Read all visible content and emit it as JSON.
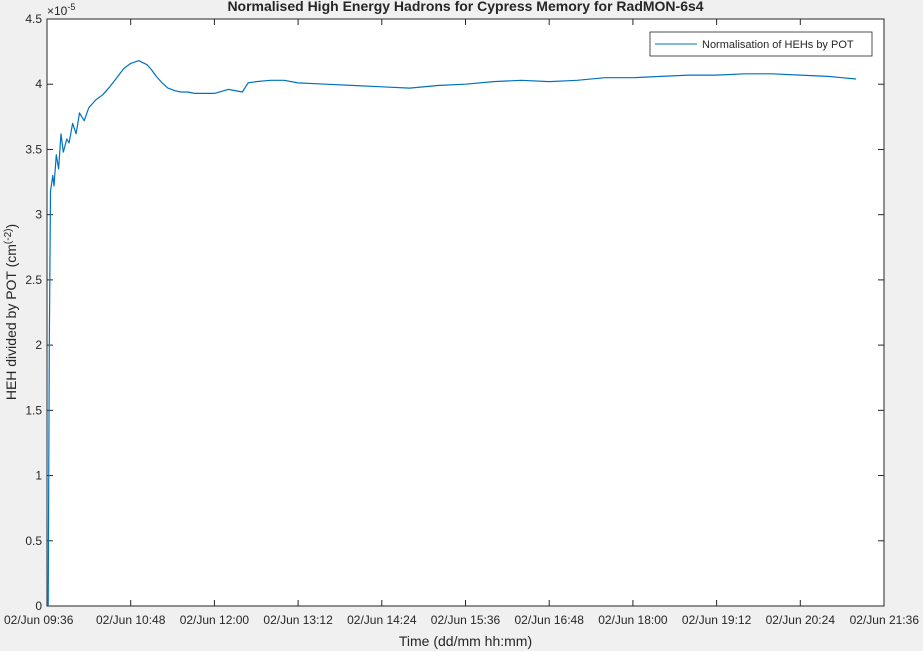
{
  "chart_data": {
    "type": "line",
    "title": "Normalised High Energy Hadrons for Cypress Memory for RadMON-6s4",
    "xlabel": "Time (dd/mm hh:mm)",
    "ylabel_main": "HEH divided by POT (cm",
    "ylabel_sup": "(-2)",
    "ylabel_tail": ")",
    "y_exponent_base": "×10",
    "y_exponent_power": "-5",
    "ylim": [
      0,
      4.5
    ],
    "xlim": [
      "09:36",
      "21:36"
    ],
    "x_ticks": [
      "02/Jun 09:36",
      "02/Jun 10:48",
      "02/Jun 12:00",
      "02/Jun 13:12",
      "02/Jun 14:24",
      "02/Jun 15:36",
      "02/Jun 16:48",
      "02/Jun 18:00",
      "02/Jun 19:12",
      "02/Jun 20:24",
      "02/Jun 21:36"
    ],
    "y_ticks": [
      "0",
      "0.5",
      "1",
      "1.5",
      "2",
      "2.5",
      "3",
      "3.5",
      "4",
      "4.5"
    ],
    "grid": false,
    "legend_position": "top-right",
    "series": [
      {
        "name": "Normalisation of HEHs by POT",
        "color": "#0072bd",
        "x": [
          "09:37",
          "09:38",
          "09:39",
          "09:41",
          "09:42",
          "09:44",
          "09:46",
          "09:48",
          "09:50",
          "09:53",
          "09:55",
          "09:58",
          "10:01",
          "10:04",
          "10:08",
          "10:12",
          "10:18",
          "10:24",
          "10:30",
          "10:36",
          "10:42",
          "10:48",
          "10:55",
          "11:02",
          "11:06",
          "11:10",
          "11:15",
          "11:20",
          "11:26",
          "11:31",
          "11:37",
          "11:43",
          "11:48",
          "11:54",
          "12:00",
          "12:12",
          "12:24",
          "12:29",
          "12:36",
          "12:48",
          "13:00",
          "13:12",
          "13:36",
          "14:00",
          "14:24",
          "14:48",
          "15:12",
          "15:36",
          "16:00",
          "16:24",
          "16:48",
          "17:12",
          "17:36",
          "18:00",
          "18:24",
          "18:48",
          "19:12",
          "19:36",
          "20:00",
          "20:24",
          "20:48",
          "21:00",
          "21:12"
        ],
        "y": [
          0,
          2.0,
          3.18,
          3.3,
          3.22,
          3.46,
          3.35,
          3.62,
          3.48,
          3.58,
          3.55,
          3.7,
          3.62,
          3.78,
          3.72,
          3.82,
          3.88,
          3.92,
          3.98,
          4.05,
          4.12,
          4.16,
          4.18,
          4.15,
          4.11,
          4.06,
          4.01,
          3.97,
          3.95,
          3.94,
          3.94,
          3.93,
          3.93,
          3.93,
          3.93,
          3.96,
          3.94,
          4.01,
          4.02,
          4.03,
          4.03,
          4.01,
          4.0,
          3.99,
          3.98,
          3.97,
          3.99,
          4.0,
          4.02,
          4.03,
          4.02,
          4.03,
          4.05,
          4.05,
          4.06,
          4.07,
          4.07,
          4.08,
          4.08,
          4.07,
          4.06,
          4.05,
          4.04
        ]
      }
    ]
  }
}
